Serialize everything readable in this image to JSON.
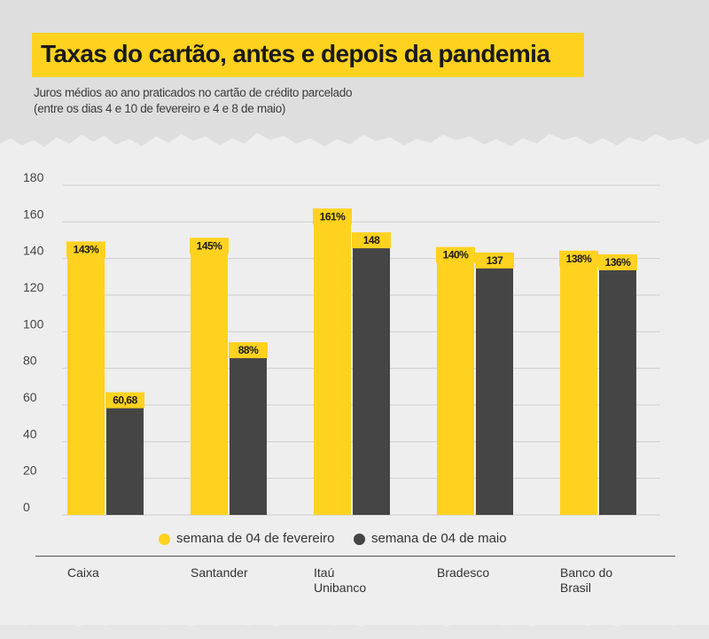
{
  "header": {
    "title": "Taxas do cartão, antes e depois da pandemia",
    "subtitle_line1": "Juros médios ao ano praticados no cartão de crédito parcelado",
    "subtitle_line2": "(entre os dias 4 e 10 de fevereiro e 4 e 8 de maio)"
  },
  "colors": {
    "series_feb": "#ffd21f",
    "series_may": "#454545",
    "accent": "#ffd21f"
  },
  "chart_data": {
    "type": "bar",
    "categories": [
      "Caixa",
      "Santander",
      "Itaú\nUnibanco",
      "Bradesco",
      "Banco do\nBrasil"
    ],
    "series": [
      {
        "name": "semana de 04 de fevereiro",
        "values": [
          143,
          145,
          161,
          140,
          138
        ],
        "labels": [
          "143%",
          "145%",
          "161%",
          "140%",
          "138%"
        ]
      },
      {
        "name": "semana de 04 de maio",
        "values": [
          60.68,
          88,
          148,
          137,
          136
        ],
        "labels": [
          "60,68",
          "88%",
          "148",
          "137",
          "136%"
        ]
      }
    ],
    "y_ticks": [
      "0",
      "20",
      "40",
      "60",
      "80",
      "100",
      "120",
      "140",
      "160",
      "180"
    ],
    "ylim": [
      0,
      180
    ],
    "grid": true,
    "legend_position": "bottom"
  },
  "legend": {
    "feb_label": "semana de 04 de fevereiro",
    "may_label": "semana de 04 de maio"
  }
}
